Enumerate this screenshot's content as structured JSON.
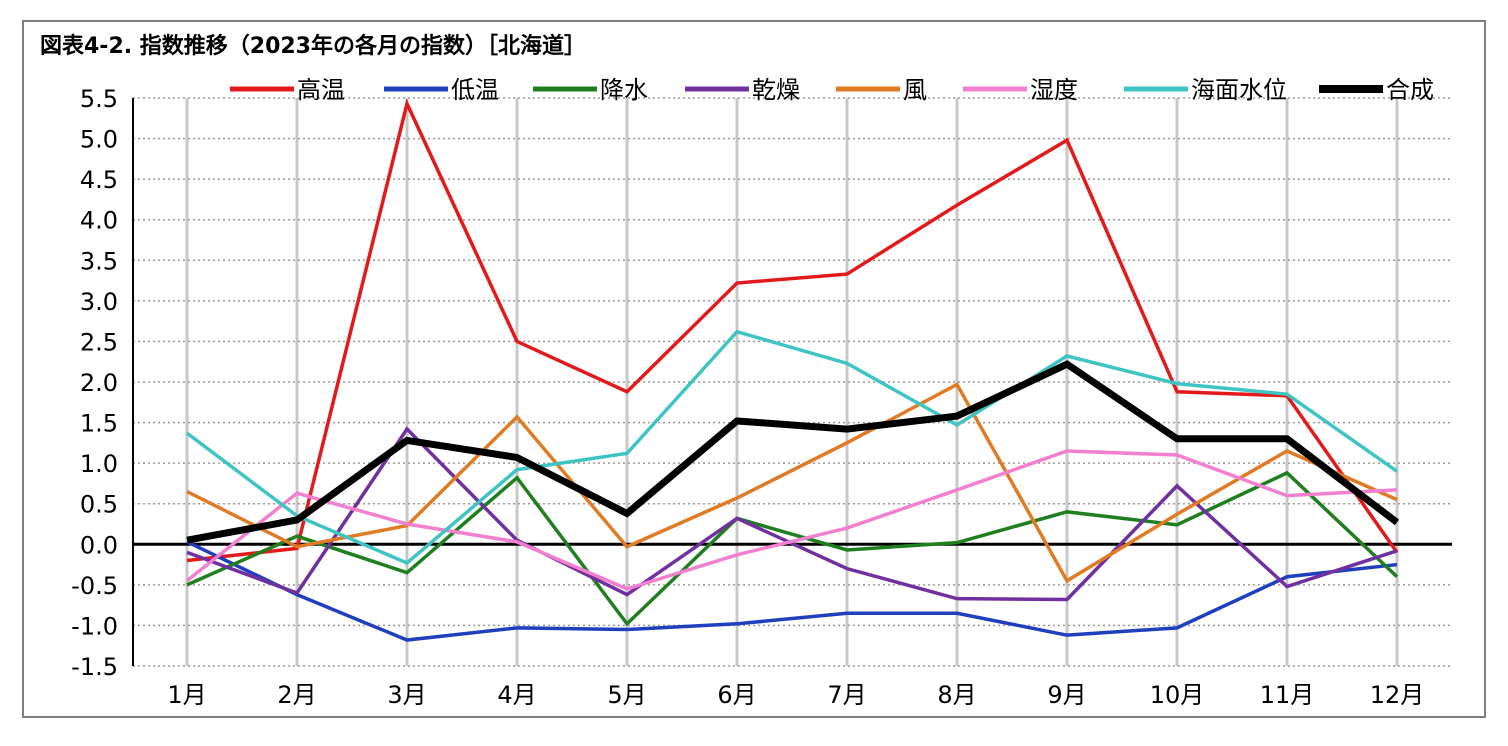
{
  "chart_data": {
    "type": "line",
    "title": "図表4-2. 指数推移（2023年の各月の指数）［北海道］",
    "categories": [
      "1月",
      "2月",
      "3月",
      "4月",
      "5月",
      "6月",
      "7月",
      "8月",
      "9月",
      "10月",
      "11月",
      "12月"
    ],
    "ylim": [
      -1.5,
      5.5
    ],
    "yticks": [
      "5.5",
      "5.0",
      "4.5",
      "4.0",
      "3.5",
      "3.0",
      "2.5",
      "2.0",
      "1.5",
      "1.0",
      "0.5",
      "0.0",
      "-0.5",
      "-1.0",
      "-1.5"
    ],
    "grid": true,
    "legend_position": "top",
    "series": [
      {
        "name": "高温",
        "color": "#e31a1c",
        "values": [
          -0.2,
          -0.05,
          5.43,
          2.5,
          1.88,
          3.22,
          3.33,
          4.18,
          4.98,
          1.88,
          1.83,
          -0.1
        ]
      },
      {
        "name": "低温",
        "color": "#1f3fbf",
        "values": [
          0.03,
          -0.62,
          -1.18,
          -1.03,
          -1.05,
          -0.98,
          -0.85,
          -0.85,
          -1.12,
          -1.03,
          -0.4,
          -0.25
        ]
      },
      {
        "name": "降水",
        "color": "#1f7f1f",
        "values": [
          -0.5,
          0.1,
          -0.35,
          0.82,
          -0.98,
          0.32,
          -0.07,
          0.02,
          0.4,
          0.24,
          0.88,
          -0.4
        ]
      },
      {
        "name": "乾燥",
        "color": "#7030a0",
        "values": [
          -0.1,
          -0.6,
          1.42,
          0.05,
          -0.62,
          0.32,
          -0.3,
          -0.67,
          -0.68,
          0.72,
          -0.52,
          -0.08
        ]
      },
      {
        "name": "風",
        "color": "#e07b24",
        "values": [
          0.65,
          -0.03,
          0.23,
          1.57,
          -0.03,
          0.57,
          1.25,
          1.97,
          -0.45,
          0.37,
          1.15,
          0.55
        ]
      },
      {
        "name": "湿度",
        "color": "#f27fd0",
        "values": [
          -0.45,
          0.63,
          0.25,
          0.03,
          -0.55,
          -0.13,
          0.2,
          0.67,
          1.15,
          1.1,
          0.6,
          0.67
        ]
      },
      {
        "name": "海面水位",
        "color": "#3fc4c4",
        "values": [
          1.37,
          0.35,
          -0.23,
          0.92,
          1.12,
          2.62,
          2.23,
          1.47,
          2.32,
          1.98,
          1.85,
          0.9
        ]
      },
      {
        "name": "合成",
        "color": "#000000",
        "values": [
          0.05,
          0.3,
          1.28,
          1.07,
          0.38,
          1.52,
          1.42,
          1.58,
          2.22,
          1.3,
          1.3,
          0.27
        ],
        "bold": true
      }
    ]
  }
}
